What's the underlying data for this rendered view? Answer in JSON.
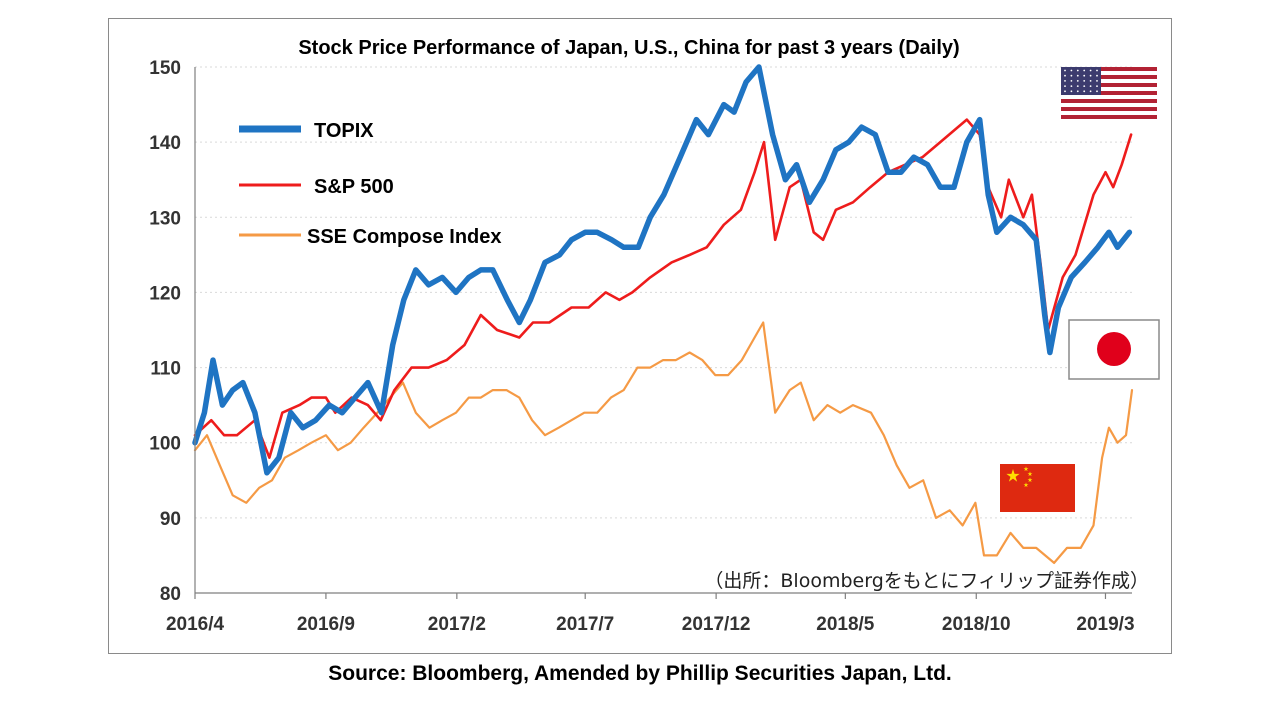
{
  "footer": {
    "source": "Source: Bloomberg, Amended by Phillip Securities Japan, Ltd."
  },
  "icons": {
    "us_flag": "us-flag-icon",
    "japan_flag": "japan-flag-icon",
    "china_flag": "china-flag-icon"
  },
  "colors": {
    "topix": "#1f74c3",
    "sp500": "#ee1c1c",
    "sse": "#f59a45",
    "grid": "#d9d9d9",
    "japan_red": "#e0001b",
    "china_red": "#de2910",
    "china_yellow": "#ffde00"
  },
  "chart_data": {
    "type": "line",
    "title": "Stock Price Performance of Japan, U.S., China for past 3 years (Daily)",
    "source_note": "（出所：Bloombergをもとにフィリップ証券作成）",
    "xlabel": "",
    "ylabel": "",
    "ylim": [
      80,
      150
    ],
    "yticks": [
      80,
      90,
      100,
      110,
      120,
      130,
      140,
      150
    ],
    "xticks": [
      "2016/4",
      "2016/9",
      "2017/2",
      "2017/7",
      "2017/12",
      "2018/5",
      "2018/10",
      "2019/3"
    ],
    "x_range": [
      "2016/4",
      "2019/4"
    ],
    "grid": "horizontal dotted",
    "legend": "top-left",
    "series": [
      {
        "name": "TOPIX",
        "color": "#1f74c3",
        "points": [
          [
            "2016-04-01",
            100
          ],
          [
            "2016-04-12",
            104
          ],
          [
            "2016-04-22",
            111
          ],
          [
            "2016-05-03",
            105
          ],
          [
            "2016-05-15",
            107
          ],
          [
            "2016-05-27",
            108
          ],
          [
            "2016-06-10",
            104
          ],
          [
            "2016-06-24",
            96
          ],
          [
            "2016-07-08",
            98
          ],
          [
            "2016-07-22",
            104
          ],
          [
            "2016-08-05",
            102
          ],
          [
            "2016-08-20",
            103
          ],
          [
            "2016-09-05",
            105
          ],
          [
            "2016-09-20",
            104
          ],
          [
            "2016-10-05",
            106
          ],
          [
            "2016-10-20",
            108
          ],
          [
            "2016-11-05",
            104
          ],
          [
            "2016-11-18",
            113
          ],
          [
            "2016-12-01",
            119
          ],
          [
            "2016-12-15",
            123
          ],
          [
            "2016-12-30",
            121
          ],
          [
            "2017-01-15",
            122
          ],
          [
            "2017-01-31",
            120
          ],
          [
            "2017-02-15",
            122
          ],
          [
            "2017-03-01",
            123
          ],
          [
            "2017-03-15",
            123
          ],
          [
            "2017-04-01",
            119
          ],
          [
            "2017-04-15",
            116
          ],
          [
            "2017-04-28",
            119
          ],
          [
            "2017-05-15",
            124
          ],
          [
            "2017-06-01",
            125
          ],
          [
            "2017-06-15",
            127
          ],
          [
            "2017-07-01",
            128
          ],
          [
            "2017-07-15",
            128
          ],
          [
            "2017-08-01",
            127
          ],
          [
            "2017-08-15",
            126
          ],
          [
            "2017-09-01",
            126
          ],
          [
            "2017-09-15",
            130
          ],
          [
            "2017-10-01",
            133
          ],
          [
            "2017-10-20",
            138
          ],
          [
            "2017-11-08",
            143
          ],
          [
            "2017-11-22",
            141
          ],
          [
            "2017-12-10",
            145
          ],
          [
            "2017-12-22",
            144
          ],
          [
            "2018-01-05",
            148
          ],
          [
            "2018-01-20",
            150
          ],
          [
            "2018-02-05",
            141
          ],
          [
            "2018-02-20",
            135
          ],
          [
            "2018-03-05",
            137
          ],
          [
            "2018-03-20",
            132
          ],
          [
            "2018-04-05",
            135
          ],
          [
            "2018-04-20",
            139
          ],
          [
            "2018-05-05",
            140
          ],
          [
            "2018-05-20",
            142
          ],
          [
            "2018-06-05",
            141
          ],
          [
            "2018-06-20",
            136
          ],
          [
            "2018-07-05",
            136
          ],
          [
            "2018-07-20",
            138
          ],
          [
            "2018-08-05",
            137
          ],
          [
            "2018-08-20",
            134
          ],
          [
            "2018-09-05",
            134
          ],
          [
            "2018-09-20",
            140
          ],
          [
            "2018-10-05",
            143
          ],
          [
            "2018-10-15",
            133
          ],
          [
            "2018-10-25",
            128
          ],
          [
            "2018-11-10",
            130
          ],
          [
            "2018-11-25",
            129
          ],
          [
            "2018-12-10",
            127
          ],
          [
            "2018-12-20",
            117
          ],
          [
            "2018-12-26",
            112
          ],
          [
            "2019-01-05",
            118
          ],
          [
            "2019-01-20",
            122
          ],
          [
            "2019-02-05",
            124
          ],
          [
            "2019-02-20",
            126
          ],
          [
            "2019-03-05",
            128
          ],
          [
            "2019-03-15",
            126
          ],
          [
            "2019-03-29",
            128
          ]
        ]
      },
      {
        "name": "S&P 500",
        "color": "#ee1c1c",
        "points": [
          [
            "2016-04-01",
            101
          ],
          [
            "2016-04-20",
            103
          ],
          [
            "2016-05-05",
            101
          ],
          [
            "2016-05-20",
            101
          ],
          [
            "2016-06-10",
            103
          ],
          [
            "2016-06-27",
            98
          ],
          [
            "2016-07-12",
            104
          ],
          [
            "2016-08-01",
            105
          ],
          [
            "2016-08-15",
            106
          ],
          [
            "2016-09-01",
            106
          ],
          [
            "2016-09-12",
            104
          ],
          [
            "2016-10-01",
            106
          ],
          [
            "2016-10-20",
            105
          ],
          [
            "2016-11-04",
            103
          ],
          [
            "2016-11-20",
            107
          ],
          [
            "2016-12-10",
            110
          ],
          [
            "2016-12-30",
            110
          ],
          [
            "2017-01-20",
            111
          ],
          [
            "2017-02-10",
            113
          ],
          [
            "2017-03-01",
            117
          ],
          [
            "2017-03-20",
            115
          ],
          [
            "2017-04-15",
            114
          ],
          [
            "2017-05-01",
            116
          ],
          [
            "2017-05-20",
            116
          ],
          [
            "2017-06-15",
            118
          ],
          [
            "2017-07-05",
            118
          ],
          [
            "2017-07-25",
            120
          ],
          [
            "2017-08-10",
            119
          ],
          [
            "2017-08-25",
            120
          ],
          [
            "2017-09-15",
            122
          ],
          [
            "2017-10-10",
            124
          ],
          [
            "2017-10-31",
            125
          ],
          [
            "2017-11-20",
            126
          ],
          [
            "2017-12-10",
            129
          ],
          [
            "2017-12-30",
            131
          ],
          [
            "2018-01-15",
            136
          ],
          [
            "2018-01-26",
            140
          ],
          [
            "2018-02-08",
            127
          ],
          [
            "2018-02-25",
            134
          ],
          [
            "2018-03-10",
            135
          ],
          [
            "2018-03-25",
            128
          ],
          [
            "2018-04-05",
            127
          ],
          [
            "2018-04-20",
            131
          ],
          [
            "2018-05-10",
            132
          ],
          [
            "2018-05-30",
            134
          ],
          [
            "2018-06-20",
            136
          ],
          [
            "2018-07-10",
            137
          ],
          [
            "2018-07-30",
            138
          ],
          [
            "2018-08-20",
            140
          ],
          [
            "2018-09-20",
            143
          ],
          [
            "2018-10-05",
            141
          ],
          [
            "2018-10-15",
            134
          ],
          [
            "2018-10-30",
            130
          ],
          [
            "2018-11-08",
            135
          ],
          [
            "2018-11-25",
            130
          ],
          [
            "2018-12-05",
            133
          ],
          [
            "2018-12-15",
            124
          ],
          [
            "2018-12-24",
            115
          ],
          [
            "2019-01-10",
            122
          ],
          [
            "2019-01-25",
            125
          ],
          [
            "2019-02-15",
            133
          ],
          [
            "2019-03-01",
            136
          ],
          [
            "2019-03-10",
            134
          ],
          [
            "2019-03-20",
            137
          ],
          [
            "2019-03-31",
            141
          ]
        ]
      },
      {
        "name": "SSE Compose Index",
        "color": "#f59a45",
        "points": [
          [
            "2016-04-01",
            99
          ],
          [
            "2016-04-15",
            101
          ],
          [
            "2016-04-30",
            97
          ],
          [
            "2016-05-15",
            93
          ],
          [
            "2016-05-31",
            92
          ],
          [
            "2016-06-15",
            94
          ],
          [
            "2016-06-30",
            95
          ],
          [
            "2016-07-15",
            98
          ],
          [
            "2016-07-31",
            99
          ],
          [
            "2016-08-15",
            100
          ],
          [
            "2016-09-01",
            101
          ],
          [
            "2016-09-15",
            99
          ],
          [
            "2016-09-30",
            100
          ],
          [
            "2016-10-15",
            102
          ],
          [
            "2016-10-31",
            104
          ],
          [
            "2016-11-15",
            106
          ],
          [
            "2016-11-30",
            108
          ],
          [
            "2016-12-15",
            104
          ],
          [
            "2016-12-31",
            102
          ],
          [
            "2017-01-15",
            103
          ],
          [
            "2017-01-31",
            104
          ],
          [
            "2017-02-15",
            106
          ],
          [
            "2017-03-01",
            106
          ],
          [
            "2017-03-15",
            107
          ],
          [
            "2017-03-31",
            107
          ],
          [
            "2017-04-15",
            106
          ],
          [
            "2017-04-30",
            103
          ],
          [
            "2017-05-15",
            101
          ],
          [
            "2017-05-31",
            102
          ],
          [
            "2017-06-15",
            103
          ],
          [
            "2017-06-30",
            104
          ],
          [
            "2017-07-15",
            104
          ],
          [
            "2017-07-31",
            106
          ],
          [
            "2017-08-15",
            107
          ],
          [
            "2017-08-31",
            110
          ],
          [
            "2017-09-15",
            110
          ],
          [
            "2017-09-30",
            111
          ],
          [
            "2017-10-15",
            111
          ],
          [
            "2017-10-31",
            112
          ],
          [
            "2017-11-15",
            111
          ],
          [
            "2017-11-30",
            109
          ],
          [
            "2017-12-15",
            109
          ],
          [
            "2017-12-31",
            111
          ],
          [
            "2018-01-15",
            114
          ],
          [
            "2018-01-25",
            116
          ],
          [
            "2018-02-08",
            104
          ],
          [
            "2018-02-25",
            107
          ],
          [
            "2018-03-10",
            108
          ],
          [
            "2018-03-25",
            103
          ],
          [
            "2018-04-10",
            105
          ],
          [
            "2018-04-25",
            104
          ],
          [
            "2018-05-10",
            105
          ],
          [
            "2018-05-31",
            104
          ],
          [
            "2018-06-15",
            101
          ],
          [
            "2018-06-30",
            97
          ],
          [
            "2018-07-15",
            94
          ],
          [
            "2018-07-31",
            95
          ],
          [
            "2018-08-15",
            90
          ],
          [
            "2018-08-31",
            91
          ],
          [
            "2018-09-15",
            89
          ],
          [
            "2018-09-30",
            92
          ],
          [
            "2018-10-10",
            85
          ],
          [
            "2018-10-25",
            85
          ],
          [
            "2018-11-10",
            88
          ],
          [
            "2018-11-25",
            86
          ],
          [
            "2018-12-10",
            86
          ],
          [
            "2018-12-31",
            84
          ],
          [
            "2019-01-15",
            86
          ],
          [
            "2019-01-31",
            86
          ],
          [
            "2019-02-15",
            89
          ],
          [
            "2019-02-25",
            98
          ],
          [
            "2019-03-05",
            102
          ],
          [
            "2019-03-15",
            100
          ],
          [
            "2019-03-25",
            101
          ],
          [
            "2019-04-01",
            107
          ]
        ]
      }
    ]
  }
}
